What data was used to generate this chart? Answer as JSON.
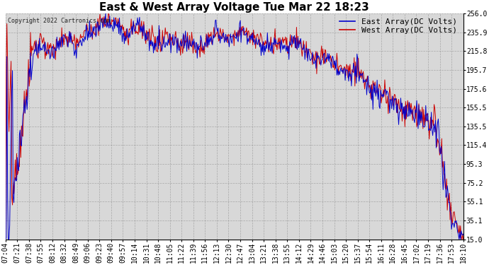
{
  "title": "East & West Array Voltage Tue Mar 22 18:23",
  "copyright": "Copyright 2022 Cartronics.com",
  "legend_east": "East Array(DC Volts)",
  "legend_west": "West Array(DC Volts)",
  "east_color": "#0000cc",
  "west_color": "#cc0000",
  "ylim": [
    15.0,
    256.0
  ],
  "yticks": [
    15.0,
    35.1,
    55.1,
    75.2,
    95.3,
    115.4,
    135.5,
    155.5,
    175.6,
    195.7,
    215.8,
    235.9,
    256.0
  ],
  "background_color": "#ffffff",
  "plot_bg_color": "#d8d8d8",
  "grid_color": "#888888",
  "title_fontsize": 11,
  "tick_fontsize": 7,
  "legend_fontsize": 8,
  "xtick_labels": [
    "07:04",
    "07:21",
    "07:38",
    "07:55",
    "08:12",
    "08:32",
    "08:49",
    "09:06",
    "09:23",
    "09:40",
    "09:57",
    "10:14",
    "10:31",
    "10:48",
    "11:05",
    "11:22",
    "11:39",
    "11:56",
    "12:13",
    "12:30",
    "12:47",
    "13:04",
    "13:21",
    "13:38",
    "13:55",
    "14:12",
    "14:29",
    "14:46",
    "15:03",
    "15:20",
    "15:37",
    "15:54",
    "16:11",
    "16:28",
    "16:45",
    "17:02",
    "17:19",
    "17:36",
    "17:53",
    "18:10"
  ],
  "num_points": 660
}
